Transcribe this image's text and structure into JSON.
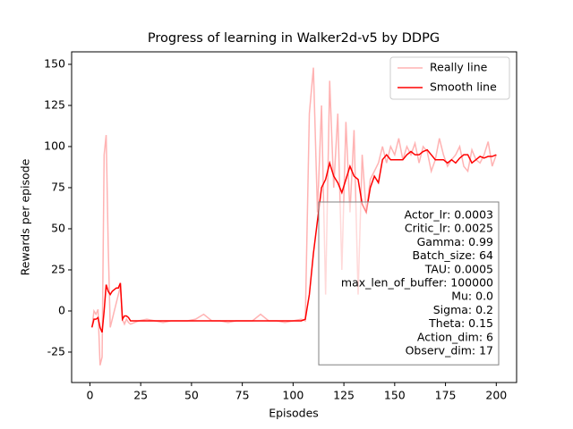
{
  "chart_data": {
    "type": "line",
    "title": "Progress of learning in Walker2d-v5 by DDPG",
    "xlabel": "Episodes",
    "ylabel": "Rewards per episode",
    "x": [
      1,
      2,
      3,
      4,
      5,
      6,
      7,
      8,
      9,
      10,
      11,
      12,
      13,
      14,
      15,
      16,
      17,
      18,
      19,
      20,
      24,
      28,
      32,
      36,
      40,
      44,
      48,
      52,
      56,
      60,
      64,
      68,
      72,
      76,
      80,
      84,
      88,
      92,
      96,
      100,
      104,
      106,
      108,
      110,
      112,
      114,
      116,
      118,
      120,
      122,
      124,
      126,
      128,
      130,
      132,
      134,
      136,
      138,
      140,
      142,
      144,
      146,
      148,
      150,
      152,
      154,
      156,
      158,
      160,
      162,
      164,
      166,
      168,
      170,
      172,
      174,
      176,
      178,
      180,
      182,
      184,
      186,
      188,
      190,
      192,
      194,
      196,
      198,
      200
    ],
    "series": [
      {
        "name": "Really line",
        "color": "#ffb3b3",
        "values": [
          -10,
          0,
          -2,
          1,
          -33,
          -28,
          95,
          107,
          40,
          -10,
          -5,
          0,
          5,
          10,
          15,
          -5,
          -8,
          -5,
          -7,
          -8,
          -6,
          -5,
          -6,
          -7,
          -6,
          -6,
          -6,
          -5,
          -2,
          -6,
          -6,
          -7,
          -6,
          -6,
          -6,
          -2,
          -6,
          -6,
          -7,
          -6,
          -5,
          -6,
          120,
          148,
          60,
          125,
          10,
          140,
          75,
          120,
          25,
          115,
          60,
          110,
          10,
          95,
          60,
          80,
          85,
          90,
          100,
          90,
          100,
          95,
          105,
          92,
          100,
          95,
          102,
          90,
          100,
          97,
          85,
          92,
          105,
          95,
          88,
          92,
          95,
          100,
          88,
          85,
          98,
          92,
          90,
          95,
          103,
          88,
          95
        ]
      },
      {
        "name": "Smooth line",
        "color": "#ff0000",
        "values": [
          -10,
          -5,
          -5,
          -4,
          -10,
          -13,
          0,
          16,
          12,
          10,
          12,
          13,
          14,
          14,
          17,
          -5,
          -3,
          -3,
          -4,
          -6,
          -6,
          -6,
          -6,
          -6,
          -6,
          -6,
          -6,
          -6,
          -6,
          -6,
          -6,
          -6,
          -6,
          -6,
          -6,
          -6,
          -6,
          -6,
          -6,
          -6,
          -6,
          -5,
          10,
          35,
          55,
          75,
          80,
          90,
          82,
          78,
          72,
          80,
          88,
          82,
          80,
          65,
          60,
          75,
          82,
          78,
          92,
          95,
          92,
          92,
          92,
          92,
          95,
          97,
          95,
          95,
          97,
          98,
          95,
          92,
          92,
          92,
          90,
          92,
          90,
          93,
          95,
          95,
          90,
          92,
          94,
          93,
          94,
          94,
          95
        ]
      }
    ],
    "xlim": [
      -9,
      210
    ],
    "ylim": [
      -43.5,
      157.6
    ],
    "xticks": [
      0,
      25,
      50,
      75,
      100,
      125,
      150,
      175,
      200
    ],
    "yticks": [
      -25,
      0,
      25,
      50,
      75,
      100,
      125,
      150
    ],
    "legend": "upper right",
    "annotation": [
      "Actor_lr: 0.0003",
      "Critic_lr: 0.0025",
      "Gamma: 0.99",
      "Batch_size: 64",
      "TAU: 0.0005",
      "max_len_of_buffer: 100000",
      "Mu: 0.0",
      "Sigma: 0.2",
      "Theta: 0.15",
      "Action_dim: 6",
      "Observ_dim: 17"
    ]
  }
}
